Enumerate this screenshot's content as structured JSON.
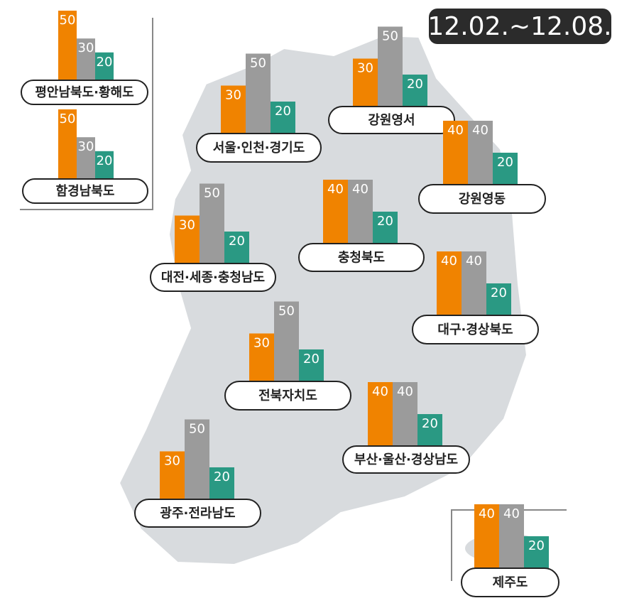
{
  "date": "12.02.~12.08.",
  "colors": [
    "#f08300",
    "#9b9b9b",
    "#2a9983"
  ],
  "regions": [
    {
      "name": "평안남북도·황해도",
      "values": [
        50,
        30,
        20
      ]
    },
    {
      "name": "함경남북도",
      "values": [
        50,
        30,
        20
      ]
    },
    {
      "name": "서울·인천·경기도",
      "values": [
        30,
        50,
        20
      ]
    },
    {
      "name": "강원영서",
      "values": [
        30,
        50,
        20
      ]
    },
    {
      "name": "강원영동",
      "values": [
        40,
        40,
        20
      ]
    },
    {
      "name": "충청북도",
      "values": [
        40,
        40,
        20
      ]
    },
    {
      "name": "대전·세종·충청남도",
      "values": [
        30,
        50,
        20
      ]
    },
    {
      "name": "대구·경상북도",
      "values": [
        40,
        40,
        20
      ]
    },
    {
      "name": "전북자치도",
      "values": [
        30,
        50,
        20
      ]
    },
    {
      "name": "부산·울산·경상남도",
      "values": [
        40,
        40,
        20
      ]
    },
    {
      "name": "광주·전라남도",
      "values": [
        30,
        50,
        20
      ]
    },
    {
      "name": "제주도",
      "values": [
        40,
        40,
        20
      ]
    }
  ]
}
